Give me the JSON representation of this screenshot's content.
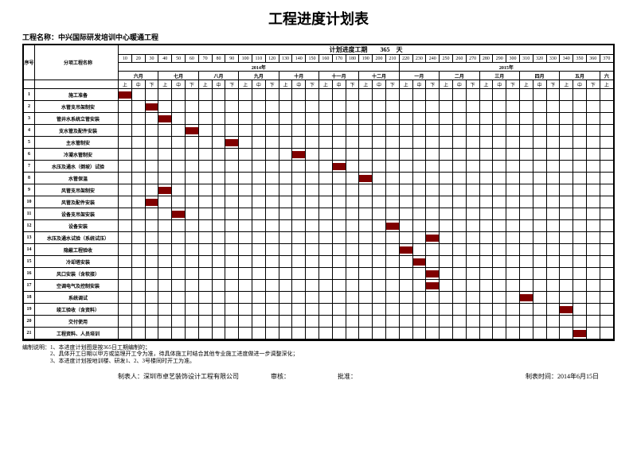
{
  "title": "工程进度计划表",
  "project_label": "工程名称：",
  "project_name": "中兴国际研发培训中心暖通工程",
  "header": {
    "schedule_label": "计划进度工期",
    "schedule_days": "365",
    "schedule_unit": "天"
  },
  "columns": {
    "idx_label": "序号",
    "name_label": "分项工程名称",
    "day_numbers": [
      "10",
      "20",
      "30",
      "40",
      "50",
      "60",
      "70",
      "80",
      "90",
      "100",
      "110",
      "120",
      "130",
      "140",
      "150",
      "160",
      "170",
      "180",
      "190",
      "200",
      "210",
      "220",
      "230",
      "240",
      "250",
      "260",
      "270",
      "280",
      "290",
      "300",
      "310",
      "320",
      "330",
      "340",
      "350",
      "360",
      "370"
    ],
    "year_left": "2014年",
    "year_right": "2015年",
    "months_left": [
      "六月",
      "七月",
      "八月",
      "九月",
      "十月",
      "十一月",
      "十二月"
    ],
    "months_right": [
      "一月",
      "二月",
      "三月",
      "四月",
      "五月",
      "六"
    ],
    "sub_cells": [
      "上",
      "中",
      "下"
    ]
  },
  "tasks": [
    {
      "idx": "1",
      "name": "施工准备",
      "start": 0,
      "dur": 2
    },
    {
      "idx": "2",
      "name": "水管支吊架制安",
      "start": 2,
      "dur": 20
    },
    {
      "idx": "3",
      "name": "管井水系统立管安装",
      "start": 3,
      "dur": 12
    },
    {
      "idx": "4",
      "name": "支水管及配件安装",
      "start": 5,
      "dur": 16
    },
    {
      "idx": "5",
      "name": "主水管制安",
      "start": 8,
      "dur": 14
    },
    {
      "idx": "6",
      "name": "冷凝水管制安",
      "start": 13,
      "dur": 10
    },
    {
      "idx": "7",
      "name": "水压及通水（倒坡）试验",
      "start": 16,
      "dur": 8
    },
    {
      "idx": "8",
      "name": "水管保温",
      "start": 18,
      "dur": 16
    },
    {
      "idx": "9",
      "name": "风管支吊架制安",
      "start": 3,
      "dur": 20
    },
    {
      "idx": "10",
      "name": "风管及配件安装",
      "start": 2,
      "dur": 22
    },
    {
      "idx": "11",
      "name": "设备支吊架安装",
      "start": 4,
      "dur": 18
    },
    {
      "idx": "12",
      "name": "设备安装",
      "start": 20,
      "dur": 10
    },
    {
      "idx": "13",
      "name": "水压及通水试验（系统试压）",
      "start": 23,
      "dur": 7
    },
    {
      "idx": "14",
      "name": "隐蔽工程验收",
      "start": 21,
      "dur": 6
    },
    {
      "idx": "15",
      "name": "冷却塔安装",
      "start": 22,
      "dur": 4
    },
    {
      "idx": "16",
      "name": "风口安装（含软接）",
      "start": 23,
      "dur": 7
    },
    {
      "idx": "17",
      "name": "空调电气及控制安装",
      "start": 23,
      "dur": 9
    },
    {
      "idx": "18",
      "name": "系统调试",
      "start": 30,
      "dur": 3
    },
    {
      "idx": "19",
      "name": "竣工验收（含资料）",
      "start": 33,
      "dur": 4
    },
    {
      "idx": "20",
      "name": "交付使用",
      "start": 0,
      "dur": 0
    },
    {
      "idx": "21",
      "name": "工程资料、人员培训",
      "start": 34,
      "dur": 3
    }
  ],
  "grid": {
    "total_units": 37,
    "bar_color": "#800000"
  },
  "notes": [
    "编制说明：1、本进度计划图是按365日工期编制的；",
    "　　　　　2、具体开工日期以甲方或监理开工令为准，待具体施工时结合其他专业施工进度做进一步调整深化；",
    "　　　　　3、本进度计划按地训楼、研发1、2、3号楼同时开工为准。"
  ],
  "footer": {
    "maker_label": "制表人：",
    "maker": "深圳市卓艺装饰设计工程有限公司",
    "reviewer_label": "审核：",
    "approver_label": "批准：",
    "date_label": "制表时间：",
    "date": "2014年6月15日"
  }
}
